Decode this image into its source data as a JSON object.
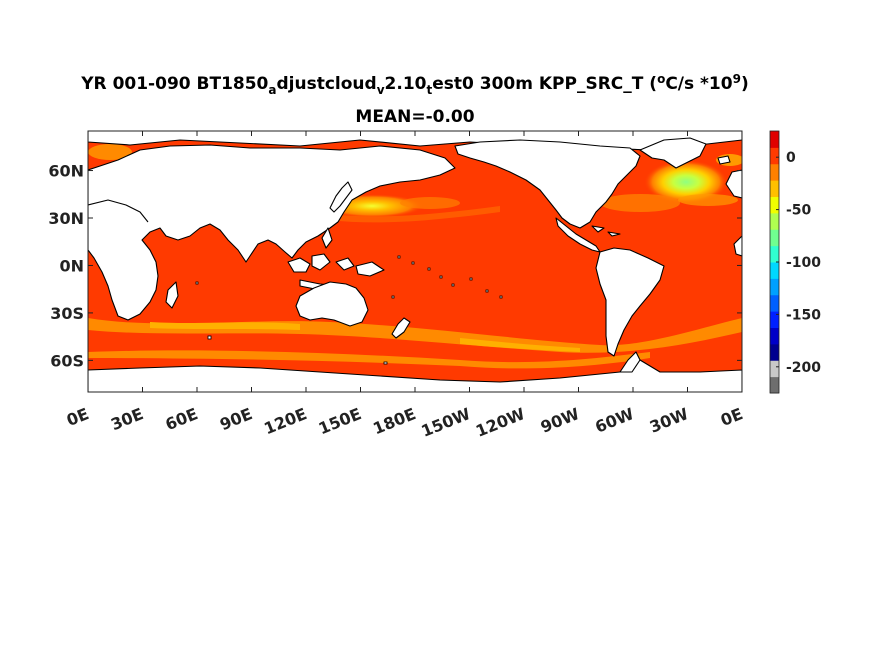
{
  "title": {
    "part1": "YR 001-090 BT1850",
    "sub1": "a",
    "part2": "djustcloud",
    "sub2": "v",
    "part3": "2.10",
    "sub3": "t",
    "part4": "est0 300m KPP_SRC_T (",
    "sup1": "o",
    "part5": "C/s *10",
    "sup2": "9",
    "part6": ")"
  },
  "subtitle": "MEAN=-0.00",
  "map": {
    "projection": "equirectangular",
    "lon_ticks": [
      "0E",
      "30E",
      "60E",
      "90E",
      "120E",
      "150E",
      "180E",
      "150W",
      "120W",
      "90W",
      "60W",
      "30W",
      "0E"
    ],
    "lat_ticks": [
      "60N",
      "30N",
      "0N",
      "30S",
      "60S"
    ],
    "lat_values": [
      60,
      30,
      0,
      -30,
      -60
    ],
    "lat_range": [
      -80,
      85
    ],
    "ocean_color": "#ff3a00",
    "land_color": "#ffffff",
    "coast_color": "#000000"
  },
  "colorbar": {
    "ticks": [
      "0",
      "-50",
      "-100",
      "-150",
      "-200"
    ],
    "tick_values": [
      0,
      -50,
      -100,
      -150,
      -200
    ],
    "range": [
      -225,
      25
    ],
    "colors": [
      "#6e6e6e",
      "#c8c8c8",
      "#00008f",
      "#0000c8",
      "#0020ff",
      "#0060ff",
      "#00a0ff",
      "#00d8ff",
      "#30ffd0",
      "#70ff90",
      "#b0ff50",
      "#f0ff00",
      "#ffc000",
      "#ff8000",
      "#ff3a00",
      "#e00000"
    ]
  }
}
